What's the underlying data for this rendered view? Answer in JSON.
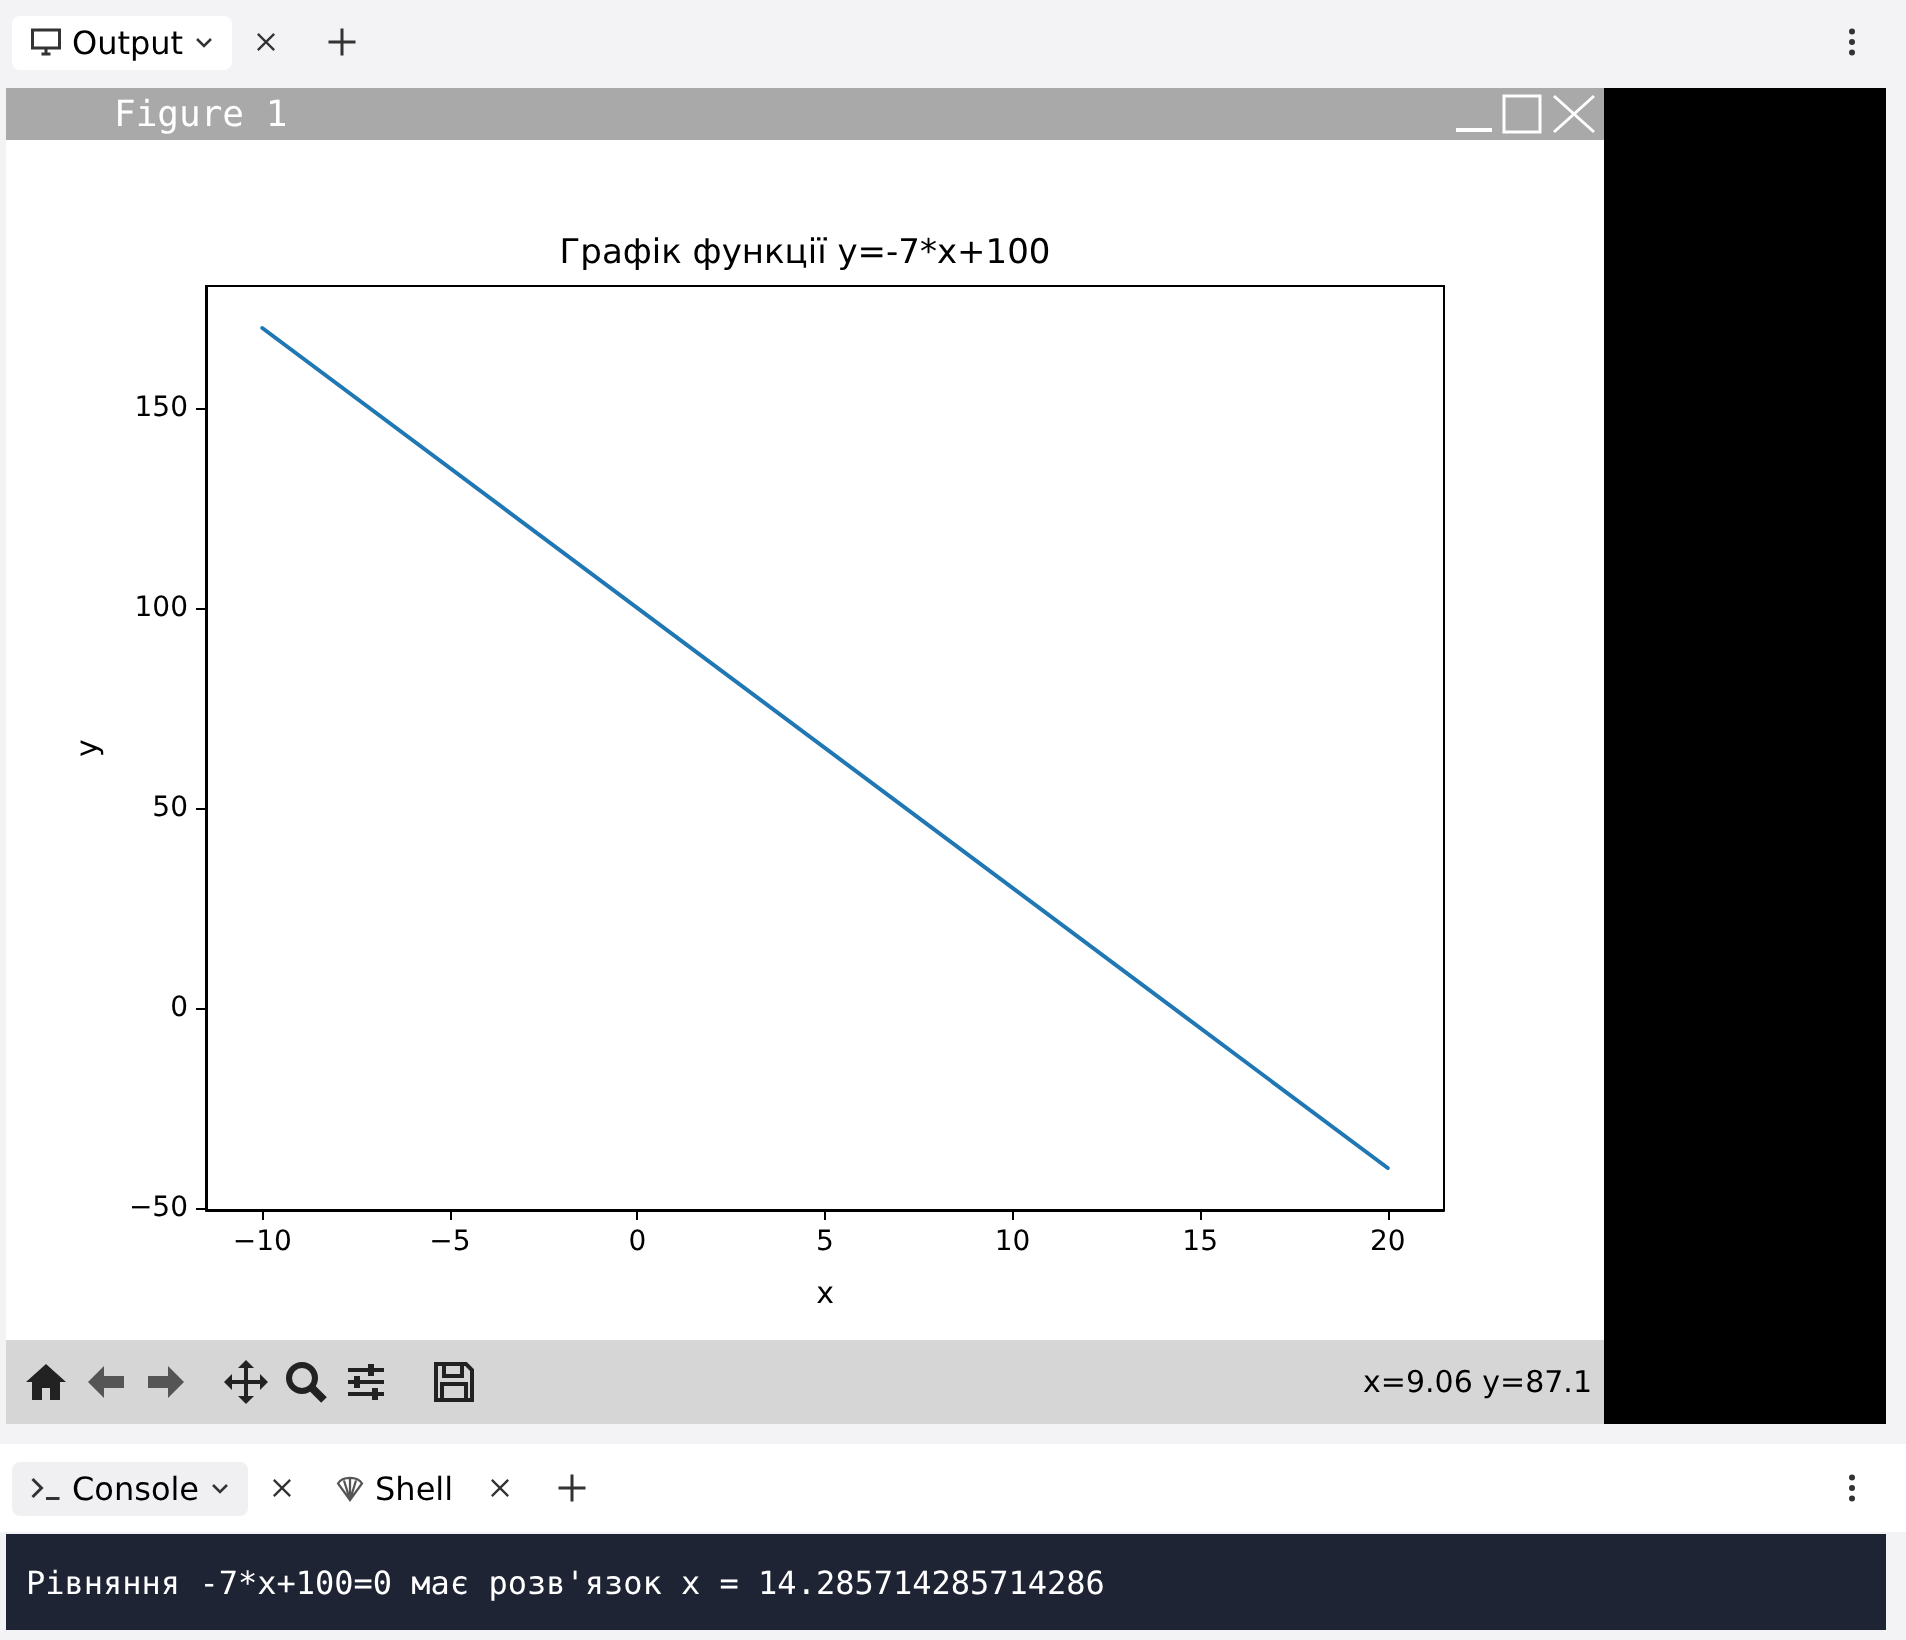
{
  "chart_data": {
    "type": "line",
    "title": "Графік функції y=-7*x+100",
    "xlabel": "x",
    "ylabel": "y",
    "x": [
      -10,
      20
    ],
    "series": [
      {
        "color": "#1f77b4",
        "values": [
          170,
          -40
        ]
      }
    ],
    "xlim": [
      -11.5,
      21.5
    ],
    "xticks": [
      {
        "value": -10,
        "label": "−10"
      },
      {
        "value": -5,
        "label": "−5"
      },
      0,
      5,
      10,
      15,
      20
    ],
    "ylim": [
      -50.5,
      180.5
    ],
    "yticks": [
      {
        "value": -50,
        "label": "−50"
      },
      0,
      50,
      100,
      150
    ],
    "grid": false,
    "marker": "none",
    "line_style": "solid",
    "annotations": [
      "Figure 1",
      "x=9.06 y=87.1",
      "Рівняння -7*x+100=0 має розв'язок x = 14.285714285714286",
      "Output",
      "Console",
      "Shell"
    ]
  }
}
